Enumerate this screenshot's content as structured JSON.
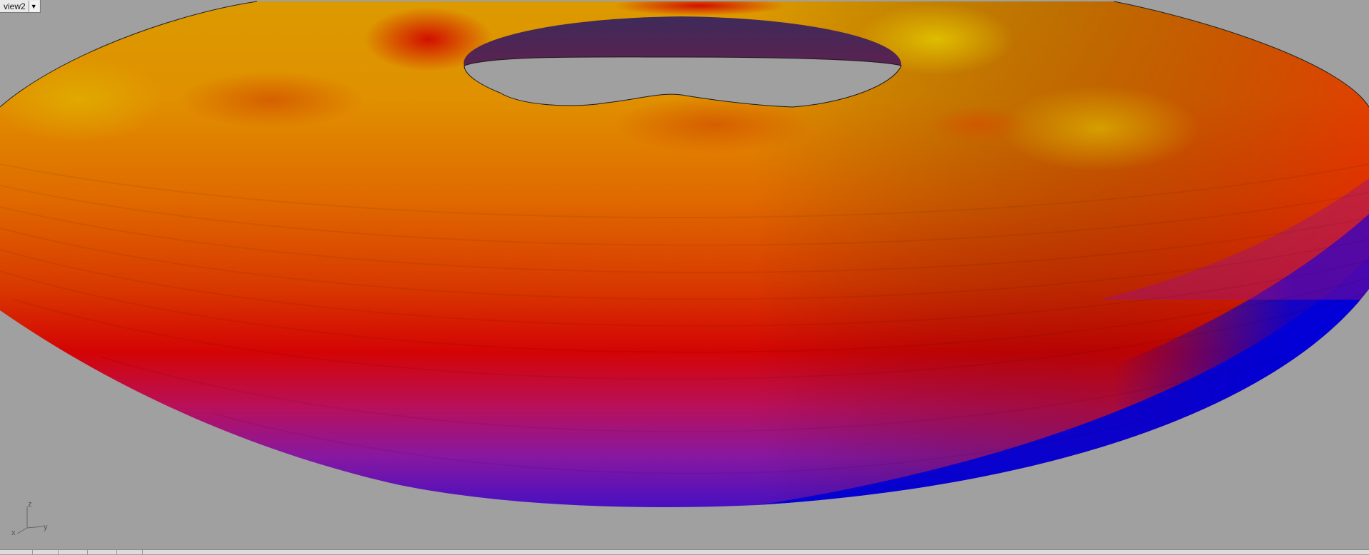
{
  "viewport": {
    "view_name": "view2",
    "dropdown_icon": "triangle-down-icon",
    "background": "#a0a0a0"
  },
  "axis_triad": {
    "z": "z",
    "y": "y",
    "x": "x"
  },
  "colors": {
    "yellow": "#d8a300",
    "orange": "#e07a00",
    "red": "#d40000",
    "magenta": "#9a1a8a",
    "purple": "#6010b0",
    "blue": "#0000d0",
    "hole_inner_wall": "#4a2a58"
  },
  "status_bar": {
    "background": "#dcdcdc"
  }
}
